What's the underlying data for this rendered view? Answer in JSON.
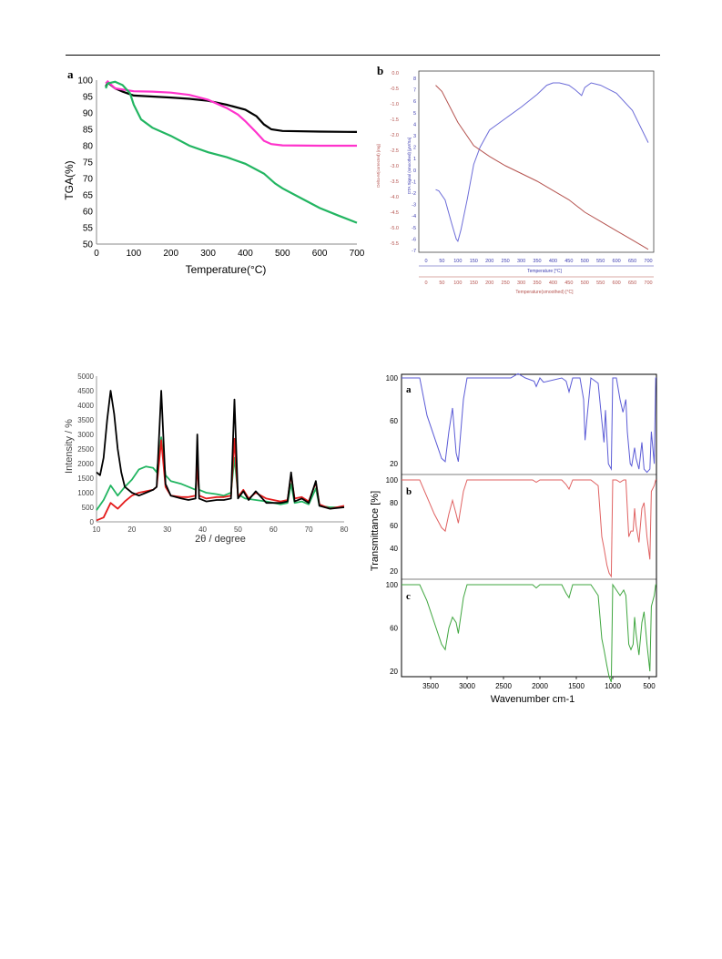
{
  "chart_data": [
    {
      "id": "tga",
      "type": "line",
      "panel_label": "a",
      "xlabel": "Temperature(°C)",
      "ylabel": "TGA(%)",
      "xlim": [
        0,
        700
      ],
      "ylim": [
        50,
        100
      ],
      "xticks": [
        0,
        100,
        200,
        300,
        400,
        500,
        600,
        700
      ],
      "yticks": [
        50,
        55,
        60,
        65,
        70,
        75,
        80,
        85,
        90,
        95,
        100
      ],
      "grid": false,
      "legend": "none",
      "series": [
        {
          "color": "#000000",
          "x": [
            25,
            30,
            50,
            70,
            100,
            150,
            200,
            250,
            300,
            350,
            400,
            430,
            450,
            470,
            500,
            600,
            700
          ],
          "y": [
            98,
            99.3,
            97.5,
            96.5,
            95.3,
            95,
            94.7,
            94.3,
            93.7,
            92.5,
            91,
            89,
            86.5,
            85,
            84.5,
            84.3,
            84.2
          ]
        },
        {
          "color": "#ff33cc",
          "x": [
            25,
            30,
            50,
            100,
            150,
            200,
            250,
            300,
            350,
            380,
            400,
            430,
            450,
            470,
            500,
            600,
            700
          ],
          "y": [
            99,
            99.6,
            97.5,
            96.6,
            96.5,
            96.2,
            95.5,
            94,
            91.5,
            89.5,
            87.5,
            84,
            81.5,
            80.5,
            80.1,
            80,
            80
          ]
        },
        {
          "color": "#22b561",
          "x": [
            25,
            30,
            50,
            70,
            90,
            100,
            120,
            150,
            200,
            250,
            300,
            350,
            400,
            450,
            480,
            500,
            550,
            600,
            650,
            700
          ],
          "y": [
            97.5,
            99,
            99.5,
            98.5,
            96,
            92.5,
            88,
            85.5,
            83,
            80,
            78,
            76.5,
            74.5,
            71.5,
            68.5,
            67,
            64,
            61,
            58.7,
            56.5
          ]
        }
      ]
    },
    {
      "id": "dta",
      "type": "line",
      "panel_label": "b",
      "xlabel": "Temperature [°C]",
      "xlabel2": "Temperature(smoothed) [°C]",
      "ylabel_left": "Delta-M(corrected) [mg]",
      "ylabel_right": "DTA Signal (smoothed) [µV/Sa]",
      "xlim": [
        0,
        700
      ],
      "xticks": [
        0,
        50,
        100,
        150,
        200,
        250,
        300,
        350,
        400,
        450,
        500,
        550,
        600,
        650,
        700
      ],
      "y_left_lim": [
        -5.5,
        0.0
      ],
      "y_left_ticks": [
        "0.0",
        "-0.5",
        "-1.0",
        "-1.5",
        "-2.0",
        "-2.5",
        "-3.0",
        "-3.5",
        "-4.0",
        "-4.5",
        "-5.0",
        "-5.5"
      ],
      "y_right_lim": [
        -7,
        8
      ],
      "y_right_ticks": [
        "8",
        "7",
        "6",
        "5",
        "4",
        "3",
        "2",
        "1",
        "0",
        "-1",
        "-2",
        "-3",
        "-4",
        "-5",
        "-6",
        "-7"
      ],
      "colors": {
        "dta": "#6c6cd8",
        "mass": "#b5534f"
      },
      "series": [
        {
          "name": "",
          "axis": "right",
          "color": "#6c6cd8",
          "x": [
            30,
            40,
            60,
            80,
            95,
            100,
            110,
            130,
            150,
            170,
            200,
            250,
            300,
            350,
            380,
            400,
            420,
            450,
            470,
            490,
            500,
            520,
            550,
            600,
            650,
            700
          ],
          "y": [
            -1.7,
            -1.8,
            -2.6,
            -4.6,
            -6.0,
            -6.2,
            -5.2,
            -2.5,
            0.5,
            2.0,
            3.5,
            4.5,
            5.5,
            6.6,
            7.4,
            7.6,
            7.6,
            7.4,
            7.0,
            6.5,
            7.2,
            7.6,
            7.4,
            6.7,
            5.2,
            2.4
          ]
        },
        {
          "name": "",
          "axis": "left",
          "color": "#b5534f",
          "x": [
            30,
            50,
            100,
            150,
            200,
            250,
            300,
            350,
            400,
            450,
            500,
            550,
            600,
            650,
            700
          ],
          "y": [
            -0.4,
            -0.6,
            -1.6,
            -2.35,
            -2.7,
            -3.0,
            -3.25,
            -3.5,
            -3.8,
            -4.1,
            -4.5,
            -4.8,
            -5.1,
            -5.4,
            -5.7
          ]
        }
      ]
    },
    {
      "id": "xrd",
      "type": "line",
      "xlabel": "2θ / degree",
      "ylabel": "Intensity / %",
      "xlim": [
        10,
        80
      ],
      "ylim": [
        0,
        5000
      ],
      "xticks": [
        10,
        20,
        30,
        40,
        50,
        60,
        70,
        80
      ],
      "yticks": [
        0,
        500,
        1000,
        1500,
        2000,
        2500,
        3000,
        3500,
        4000,
        4500,
        5000
      ],
      "grid": false,
      "legend": "none",
      "series": [
        {
          "color": "#22b561",
          "x": [
            10,
            12,
            14,
            16,
            18,
            20,
            22,
            24,
            26,
            27,
            28.3,
            29.5,
            31,
            34,
            36,
            38,
            38.5,
            39,
            41,
            44,
            46,
            48,
            49,
            50,
            52,
            55,
            58,
            62,
            64,
            65,
            66,
            68,
            70,
            72,
            73,
            76,
            80
          ],
          "y": [
            400,
            750,
            1250,
            900,
            1200,
            1450,
            1800,
            1900,
            1850,
            1700,
            2900,
            1600,
            1400,
            1300,
            1200,
            1100,
            1900,
            1100,
            1000,
            950,
            900,
            1000,
            2200,
            950,
            800,
            750,
            700,
            600,
            650,
            1300,
            650,
            700,
            600,
            1150,
            550,
            500,
            500
          ]
        },
        {
          "color": "#e41b1b",
          "x": [
            10,
            12,
            14,
            16,
            18,
            20,
            22,
            24,
            26,
            27,
            28.3,
            29.5,
            31,
            34,
            36,
            38,
            38.5,
            39,
            41,
            44,
            46,
            48,
            49,
            50,
            51.5,
            53,
            55,
            58,
            62,
            64,
            65,
            66,
            68,
            70,
            72,
            73,
            76,
            80
          ],
          "y": [
            50,
            150,
            650,
            450,
            700,
            900,
            1000,
            1050,
            1100,
            1200,
            2800,
            1200,
            900,
            850,
            850,
            900,
            2000,
            900,
            800,
            850,
            850,
            900,
            2850,
            850,
            1100,
            800,
            1000,
            800,
            700,
            750,
            1600,
            800,
            850,
            700,
            1350,
            600,
            450,
            550
          ]
        },
        {
          "color": "#000000",
          "x": [
            10,
            11,
            12,
            13,
            14,
            15,
            16,
            17,
            18,
            20,
            22,
            24,
            26,
            27,
            28.3,
            29.5,
            31,
            34,
            36,
            38,
            38.5,
            39,
            41,
            44,
            46,
            48,
            49,
            50,
            51.5,
            53,
            55,
            58,
            62,
            64,
            65,
            66,
            68,
            70,
            72,
            73,
            76,
            80
          ],
          "y": [
            1700,
            1600,
            2200,
            3500,
            4500,
            3700,
            2500,
            1700,
            1200,
            1000,
            900,
            1000,
            1100,
            1200,
            4500,
            1300,
            900,
            800,
            750,
            800,
            3000,
            800,
            700,
            750,
            750,
            800,
            4200,
            800,
            1050,
            750,
            1050,
            650,
            650,
            700,
            1700,
            700,
            800,
            650,
            1400,
            550,
            450,
            500
          ]
        }
      ]
    },
    {
      "id": "ftir",
      "type": "line",
      "xlabel": "Wavenumber cm-1",
      "ylabel": "Transmittance [%]",
      "xlim": [
        3900,
        400
      ],
      "xticks": [
        3500,
        3000,
        2500,
        2000,
        1500,
        1000,
        500
      ],
      "subplots": [
        {
          "label": "a",
          "color": "#5b5bd6",
          "ylim": [
            10,
            100
          ],
          "yticks": [
            20,
            60,
            100
          ],
          "x": [
            3900,
            3650,
            3550,
            3450,
            3350,
            3300,
            3250,
            3200,
            3150,
            3120,
            3050,
            3000,
            2900,
            2400,
            2300,
            2200,
            2080,
            2050,
            2000,
            1950,
            1700,
            1640,
            1600,
            1550,
            1450,
            1400,
            1380,
            1350,
            1300,
            1200,
            1150,
            1120,
            1100,
            1060,
            1020,
            1000,
            950,
            900,
            860,
            820,
            800,
            760,
            740,
            700,
            680,
            640,
            600,
            570,
            530,
            490,
            470,
            430,
            410,
            400
          ],
          "y": [
            100,
            100,
            65,
            45,
            25,
            22,
            50,
            72,
            30,
            22,
            80,
            100,
            100,
            100,
            104,
            100,
            97,
            92,
            100,
            96,
            100,
            97,
            87,
            100,
            100,
            80,
            42,
            65,
            100,
            95,
            60,
            40,
            70,
            20,
            15,
            100,
            100,
            80,
            68,
            80,
            50,
            20,
            18,
            35,
            25,
            15,
            40,
            15,
            12,
            15,
            50,
            20,
            100,
            100
          ]
        },
        {
          "label": "b",
          "color": "#e06262",
          "ylim": [
            15,
            100
          ],
          "yticks": [
            20,
            40,
            60,
            80,
            100
          ],
          "x": [
            3900,
            3650,
            3550,
            3450,
            3350,
            3300,
            3250,
            3200,
            3150,
            3120,
            3050,
            3000,
            2900,
            2100,
            2050,
            2000,
            1950,
            1700,
            1640,
            1600,
            1550,
            1300,
            1200,
            1150,
            1120,
            1080,
            1050,
            1020,
            1000,
            950,
            900,
            850,
            820,
            780,
            750,
            720,
            700,
            680,
            640,
            600,
            570,
            530,
            490,
            470,
            430,
            410,
            400
          ],
          "y": [
            100,
            100,
            85,
            70,
            58,
            55,
            70,
            82,
            70,
            62,
            90,
            100,
            100,
            100,
            98,
            100,
            100,
            100,
            96,
            92,
            100,
            100,
            95,
            50,
            40,
            25,
            18,
            15,
            100,
            100,
            98,
            100,
            100,
            50,
            55,
            55,
            75,
            60,
            45,
            75,
            80,
            50,
            30,
            90,
            95,
            100,
            100
          ]
        },
        {
          "label": "c",
          "color": "#3fa63f",
          "ylim": [
            15,
            100
          ],
          "yticks": [
            20,
            60,
            100
          ],
          "x": [
            3900,
            3650,
            3550,
            3450,
            3350,
            3300,
            3250,
            3200,
            3150,
            3120,
            3050,
            3000,
            2900,
            2100,
            2050,
            2000,
            1950,
            1700,
            1640,
            1600,
            1550,
            1300,
            1200,
            1150,
            1120,
            1080,
            1050,
            1020,
            1000,
            950,
            900,
            850,
            820,
            780,
            750,
            720,
            700,
            680,
            640,
            600,
            570,
            530,
            490,
            470,
            430,
            410,
            400
          ],
          "y": [
            100,
            100,
            85,
            65,
            45,
            40,
            60,
            70,
            65,
            55,
            88,
            100,
            100,
            100,
            97,
            100,
            100,
            100,
            92,
            88,
            100,
            100,
            90,
            50,
            40,
            25,
            15,
            10,
            100,
            95,
            90,
            95,
            90,
            45,
            40,
            45,
            70,
            55,
            35,
            65,
            75,
            45,
            20,
            80,
            90,
            100,
            100
          ]
        }
      ]
    }
  ]
}
